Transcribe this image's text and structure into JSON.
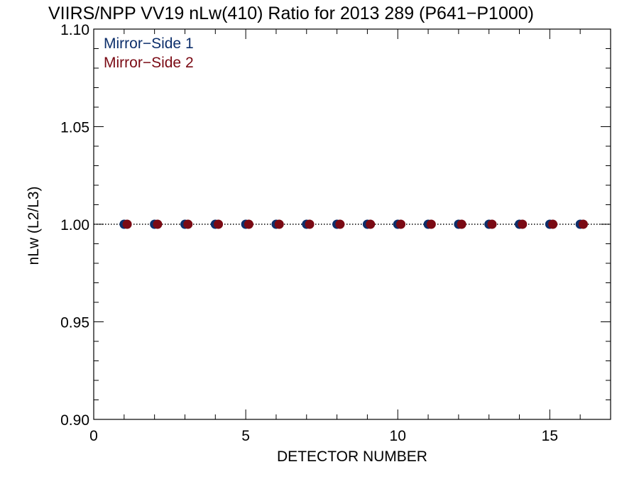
{
  "chart_data": {
    "type": "scatter",
    "title": "VIIRS/NPP VV19 nLw(410) Ratio for 2013 289 (P641−P1000)",
    "xlabel": "DETECTOR NUMBER",
    "ylabel": "nLw (L2/L3)",
    "xlim": [
      0,
      17
    ],
    "ylim": [
      0.9,
      1.1
    ],
    "xticks": [
      0,
      5,
      10,
      15
    ],
    "xtick_labels": [
      "0",
      "5",
      "10",
      "15"
    ],
    "yticks": [
      0.9,
      0.95,
      1.0,
      1.05,
      1.1
    ],
    "ytick_labels": [
      "0.90",
      "0.95",
      "1.00",
      "1.05",
      "1.10"
    ],
    "reference_line": {
      "y": 1.0,
      "style": "dotted",
      "color": "#000000"
    },
    "legend_position": "top-left",
    "series": [
      {
        "name": "Mirror−Side 1",
        "color": "#0d2f6b",
        "x": [
          1,
          2,
          3,
          4,
          5,
          6,
          7,
          8,
          9,
          10,
          11,
          12,
          13,
          14,
          15,
          16
        ],
        "y": [
          1.0,
          1.0,
          1.0,
          1.0,
          1.0,
          1.0,
          1.0,
          1.0,
          1.0,
          1.0,
          1.0,
          1.0,
          1.0,
          1.0,
          1.0,
          1.0
        ]
      },
      {
        "name": "Mirror−Side 2",
        "color": "#7a0a14",
        "x": [
          1.1,
          2.1,
          3.1,
          4.1,
          5.1,
          6.1,
          7.1,
          8.1,
          9.1,
          10.1,
          11.1,
          12.1,
          13.1,
          14.1,
          15.1,
          16.1
        ],
        "y": [
          1.0,
          1.0,
          1.0,
          1.0,
          1.0,
          1.0,
          1.0,
          1.0,
          1.0,
          1.0,
          1.0,
          1.0,
          1.0,
          1.0,
          1.0,
          1.0
        ]
      }
    ]
  }
}
